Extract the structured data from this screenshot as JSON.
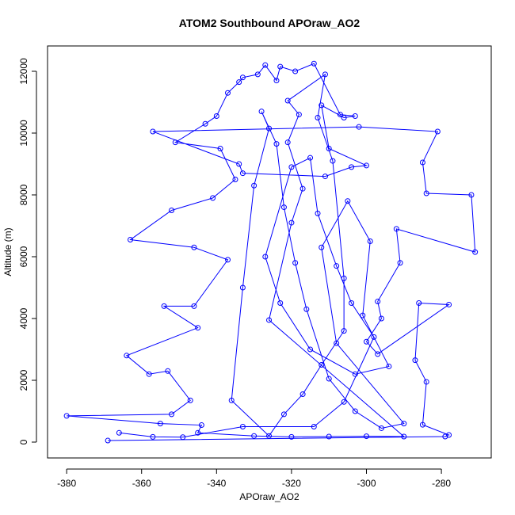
{
  "chart_data": {
    "type": "line",
    "title": "ATOM2 Southbound APOraw_AO2",
    "x_label": "APOraw_AO2",
    "y_label": "Altitude (m)",
    "color": "#0000ff",
    "markers": true,
    "x": [
      -369,
      -279,
      -278,
      -285,
      -284,
      -287,
      -286,
      -278,
      -297,
      -300,
      -296,
      -297,
      -291,
      -292,
      -271,
      -272,
      -284,
      -285,
      -281,
      -302,
      -357,
      -334,
      -333,
      -311,
      -304,
      -300,
      -310,
      -312,
      -306,
      -303,
      -307,
      -314,
      -319,
      -323,
      -324,
      -327,
      -329,
      -333,
      -334,
      -337,
      -340,
      -343,
      -351,
      -339,
      -335,
      -341,
      -352,
      -363,
      -346,
      -337,
      -346,
      -354,
      -345,
      -364,
      -358,
      -353,
      -347,
      -352,
      -380,
      -355,
      -344,
      -345,
      -330,
      -320,
      -310,
      -300,
      -290,
      -326,
      -320,
      -317,
      -321,
      -318,
      -321,
      -311,
      -313,
      -309,
      -306,
      -306,
      -312,
      -317,
      -322,
      -326,
      -336,
      -333,
      -330,
      -326,
      -328,
      -324,
      -322,
      -319,
      -316,
      -310,
      -303,
      -296,
      -290,
      -308,
      -312,
      -305,
      -299,
      -301,
      -294,
      -303,
      -315,
      -323,
      -327,
      -320,
      -315,
      -313,
      -308,
      -304,
      -298,
      -306,
      -314,
      -333,
      -349,
      -357,
      -366
    ],
    "values": [
      50,
      180,
      230,
      560,
      1950,
      2650,
      4500,
      4450,
      2850,
      3250,
      4000,
      4550,
      5800,
      6900,
      6150,
      8000,
      8050,
      9050,
      10050,
      10200,
      10050,
      9000,
      8700,
      8600,
      8900,
      8950,
      9500,
      10900,
      10500,
      10550,
      10600,
      12250,
      12000,
      12150,
      11700,
      12200,
      11900,
      11800,
      11650,
      11300,
      10550,
      10300,
      9700,
      9500,
      8500,
      7900,
      7500,
      6550,
      6300,
      5900,
      4400,
      4400,
      3700,
      2800,
      2200,
      2300,
      1350,
      900,
      850,
      600,
      550,
      300,
      200,
      170,
      180,
      190,
      180,
      3950,
      7100,
      8200,
      9700,
      10600,
      11050,
      11900,
      10500,
      9100,
      5300,
      3600,
      2500,
      1550,
      900,
      200,
      1350,
      5000,
      8300,
      10150,
      10700,
      9650,
      7600,
      5800,
      4300,
      2050,
      1000,
      450,
      600,
      3200,
      6300,
      7800,
      6500,
      4100,
      2450,
      2200,
      3000,
      4500,
      6000,
      8900,
      9200,
      7400,
      5700,
      4500,
      3400,
      1300,
      500,
      500,
      160,
      170,
      300
    ],
    "xlim": [
      -385.1,
      -266.7
    ],
    "ylim": [
      -513,
      12820
    ],
    "xticks": [
      -380,
      -360,
      -340,
      -320,
      -300,
      -280
    ],
    "yticks": [
      0,
      2000,
      4000,
      6000,
      8000,
      10000,
      12000
    ]
  }
}
